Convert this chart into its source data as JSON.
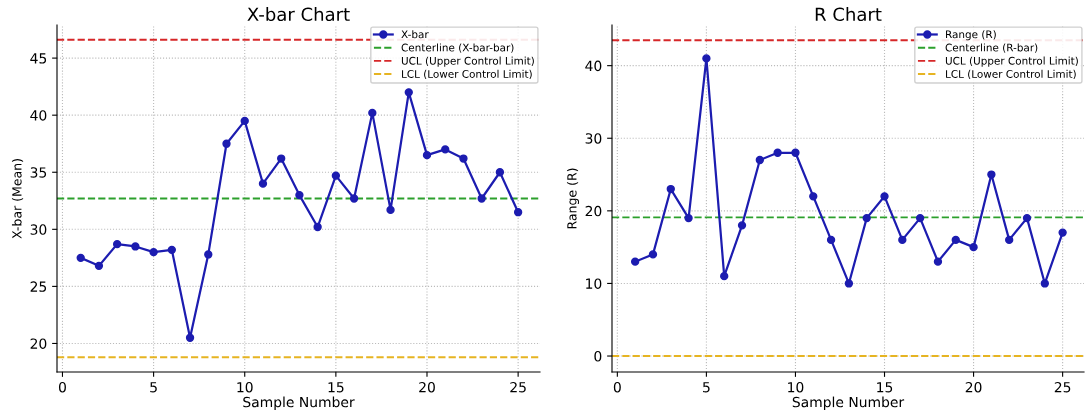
{
  "chart_data": [
    {
      "type": "line",
      "title": "X-bar Chart",
      "xlabel": "Sample Number",
      "ylabel": "X-bar (Mean)",
      "x": [
        1,
        2,
        3,
        4,
        5,
        6,
        7,
        8,
        9,
        10,
        11,
        12,
        13,
        14,
        15,
        16,
        17,
        18,
        19,
        20,
        21,
        22,
        23,
        24,
        25
      ],
      "series": [
        {
          "name": "X-bar",
          "color": "#1c1cb0",
          "values": [
            27.5,
            26.8,
            28.7,
            28.5,
            28.0,
            28.2,
            20.5,
            27.8,
            37.5,
            39.5,
            34.0,
            36.2,
            33.0,
            30.2,
            34.7,
            32.7,
            40.2,
            31.7,
            42.0,
            36.5,
            37.0,
            36.2,
            32.7,
            35.0,
            31.5
          ]
        }
      ],
      "ref_lines": [
        {
          "axis": "y",
          "value": 32.7,
          "label": "Centerline (X-bar-bar)",
          "color": "#2ca02c",
          "line_style": "dashed"
        },
        {
          "axis": "y",
          "value": 46.6,
          "label": "UCL (Upper Control Limit)",
          "color": "#d62728",
          "line_style": "dashed"
        },
        {
          "axis": "y",
          "value": 18.8,
          "label": "LCL (Lower Control Limit)",
          "color": "#e6b422",
          "line_style": "dashed"
        }
      ],
      "xlim": [
        -0.3,
        26.2
      ],
      "xticks": [
        0,
        5,
        10,
        15,
        20,
        25
      ],
      "ylim": [
        17.5,
        47.9
      ],
      "yticks": [
        20,
        25,
        30,
        35,
        40,
        45
      ],
      "grid": true,
      "legend": "top right",
      "marker": "circle",
      "line_style": "solid"
    },
    {
      "type": "line",
      "title": "R Chart",
      "xlabel": "Sample Number",
      "ylabel": "Range (R)",
      "x": [
        1,
        2,
        3,
        4,
        5,
        6,
        7,
        8,
        9,
        10,
        11,
        12,
        13,
        14,
        15,
        16,
        17,
        18,
        19,
        20,
        21,
        22,
        23,
        24,
        25
      ],
      "series": [
        {
          "name": "Range (R)",
          "color": "#1c1cb0",
          "values": [
            13,
            14,
            23,
            19,
            41,
            11,
            18,
            27,
            28,
            28,
            22,
            16,
            10,
            19,
            22,
            16,
            19,
            13,
            16,
            15,
            25,
            16,
            19,
            10,
            17
          ]
        }
      ],
      "ref_lines": [
        {
          "axis": "y",
          "value": 19.1,
          "label": "Centerline (R-bar)",
          "color": "#2ca02c",
          "line_style": "dashed"
        },
        {
          "axis": "y",
          "value": 43.5,
          "label": "UCL (Upper Control Limit)",
          "color": "#d62728",
          "line_style": "dashed"
        },
        {
          "axis": "y",
          "value": 0,
          "label": "LCL (Lower Control Limit)",
          "color": "#e6b422",
          "line_style": "dashed"
        }
      ],
      "xlim": [
        -0.3,
        26.2
      ],
      "xticks": [
        0,
        5,
        10,
        15,
        20,
        25
      ],
      "ylim": [
        -2.2,
        45.6
      ],
      "yticks": [
        0,
        10,
        20,
        30,
        40
      ],
      "grid": true,
      "legend": "top right",
      "marker": "circle",
      "line_style": "solid"
    }
  ]
}
